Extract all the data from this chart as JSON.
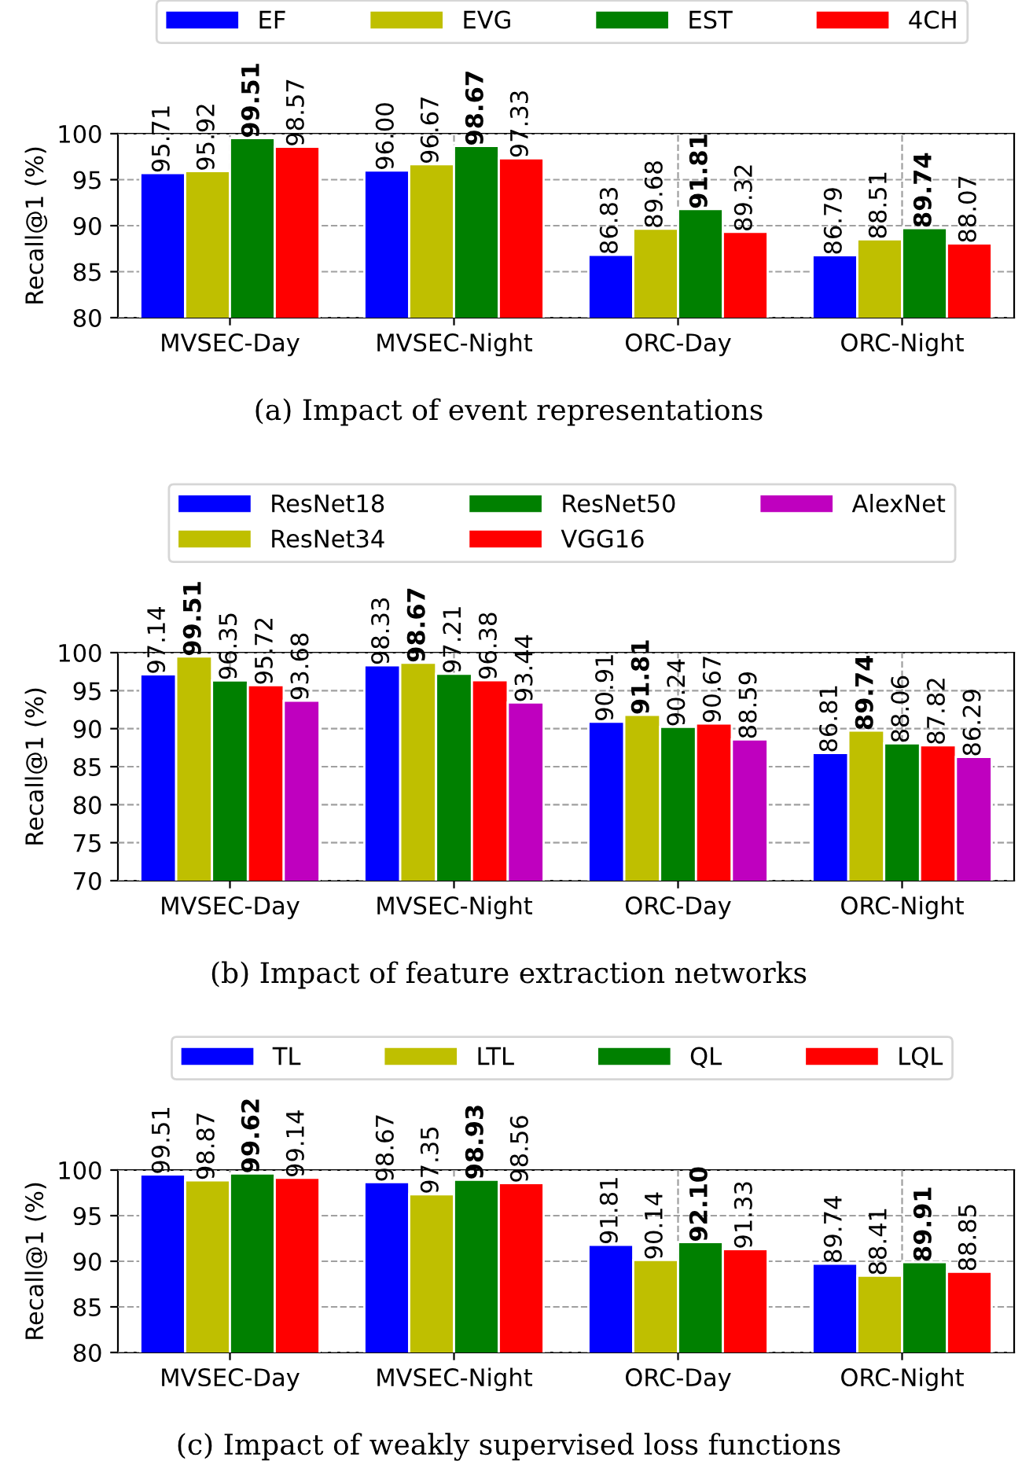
{
  "chart_data": [
    {
      "type": "bar",
      "title": "(a) Impact of event representations",
      "ylabel": "Recall@1 (%)",
      "categories": [
        "MVSEC-Day",
        "MVSEC-Night",
        "ORC-Day",
        "ORC-Night"
      ],
      "series": [
        {
          "name": "EF",
          "color": "#0000ff",
          "values": [
            95.71,
            96.0,
            86.83,
            86.79
          ],
          "value_labels": [
            "95.71",
            "96.00",
            "86.83",
            "86.79"
          ]
        },
        {
          "name": "EVG",
          "color": "#bfbf00",
          "values": [
            95.92,
            96.67,
            89.68,
            88.51
          ]
        },
        {
          "name": "EST",
          "color": "#008000",
          "values": [
            99.51,
            98.67,
            91.81,
            89.74
          ]
        },
        {
          "name": "4CH",
          "color": "#ff0000",
          "values": [
            98.57,
            97.33,
            89.32,
            88.07
          ]
        }
      ],
      "ylim": [
        80,
        100
      ],
      "yticks": [
        80,
        85,
        90,
        95,
        100
      ],
      "grid": true,
      "legend": "top",
      "data_labels": true
    },
    {
      "type": "bar",
      "title": "(b) Impact of feature extraction networks",
      "ylabel": "Recall@1 (%)",
      "categories": [
        "MVSEC-Day",
        "MVSEC-Night",
        "ORC-Day",
        "ORC-Night"
      ],
      "series": [
        {
          "name": "ResNet18",
          "color": "#0000ff",
          "values": [
            97.14,
            98.33,
            90.91,
            86.81
          ]
        },
        {
          "name": "ResNet34",
          "color": "#bfbf00",
          "values": [
            99.51,
            98.67,
            91.81,
            89.74
          ]
        },
        {
          "name": "ResNet50",
          "color": "#008000",
          "values": [
            96.35,
            97.21,
            90.24,
            88.06
          ]
        },
        {
          "name": "VGG16",
          "color": "#ff0000",
          "values": [
            95.72,
            96.38,
            90.67,
            87.82
          ]
        },
        {
          "name": "AlexNet",
          "color": "#bf00bf",
          "values": [
            93.68,
            93.44,
            88.59,
            86.29
          ]
        }
      ],
      "ylim": [
        70,
        100
      ],
      "yticks": [
        70,
        75,
        80,
        85,
        90,
        95,
        100
      ],
      "grid": true,
      "legend": "top",
      "data_labels": true
    },
    {
      "type": "bar",
      "title": "(c) Impact of weakly supervised loss functions",
      "ylabel": "Recall@1 (%)",
      "categories": [
        "MVSEC-Day",
        "MVSEC-Night",
        "ORC-Day",
        "ORC-Night"
      ],
      "series": [
        {
          "name": "TL",
          "color": "#0000ff",
          "values": [
            99.51,
            98.67,
            91.81,
            89.74
          ]
        },
        {
          "name": "LTL",
          "color": "#bfbf00",
          "values": [
            98.87,
            97.35,
            90.14,
            88.41
          ]
        },
        {
          "name": "QL",
          "color": "#008000",
          "values": [
            99.62,
            98.93,
            92.1,
            89.91
          ],
          "value_labels": [
            "99.62",
            "98.93",
            "92.10",
            "89.91"
          ]
        },
        {
          "name": "LQL",
          "color": "#ff0000",
          "values": [
            99.14,
            98.56,
            91.33,
            88.85
          ]
        }
      ],
      "ylim": [
        80,
        100
      ],
      "yticks": [
        80,
        85,
        90,
        95,
        100
      ],
      "grid": true,
      "legend": "top",
      "data_labels": true
    }
  ]
}
